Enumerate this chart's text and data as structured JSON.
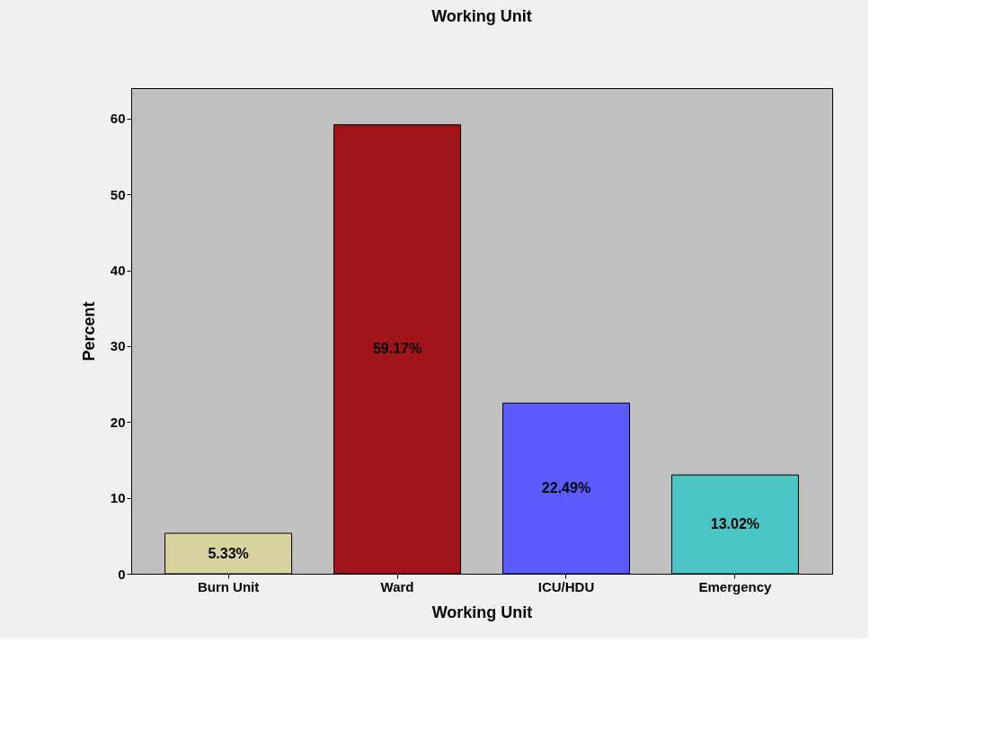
{
  "chart_data": {
    "type": "bar",
    "title": "Working Unit",
    "xlabel": "Working Unit",
    "ylabel": "Percent",
    "categories": [
      "Burn Unit",
      "Ward",
      "ICU/HDU",
      "Emergency"
    ],
    "values": [
      5.33,
      59.17,
      22.49,
      13.02
    ],
    "value_labels": [
      "5.33%",
      "59.17%",
      "22.49%",
      "13.02%"
    ],
    "colors": [
      "#d8d3a0",
      "#a0141a",
      "#5a5aff",
      "#4cc5c5"
    ],
    "ylim": [
      0,
      64
    ],
    "yticks": [
      0,
      10,
      20,
      30,
      40,
      50,
      60
    ],
    "grid": false,
    "legend": false
  }
}
